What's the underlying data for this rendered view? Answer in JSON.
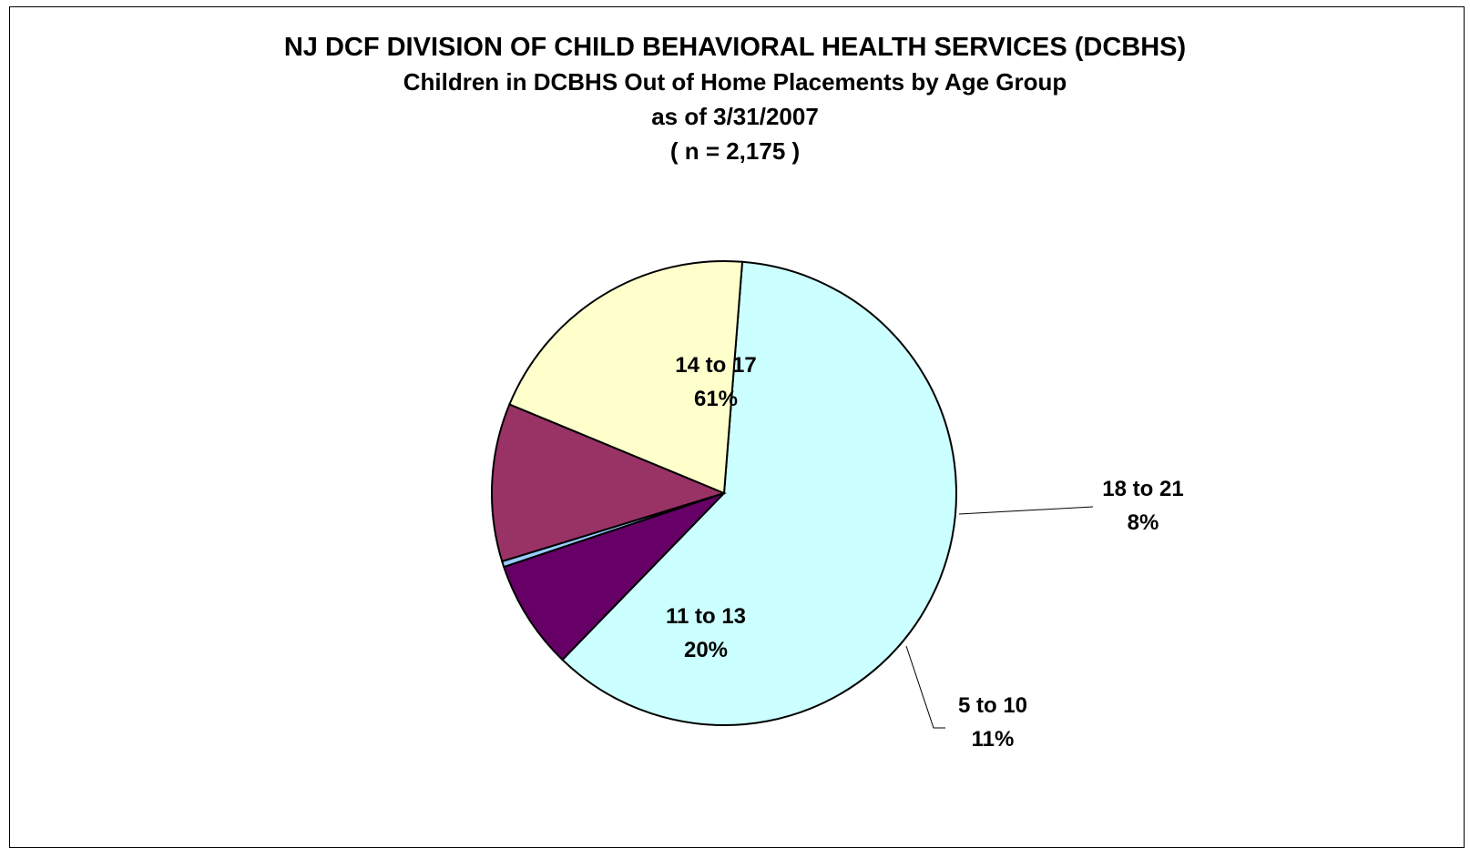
{
  "chart_data": {
    "type": "pie",
    "title": "NJ DCF DIVISION OF CHILD BEHAVIORAL HEALTH SERVICES (DCBHS)",
    "subtitle_lines": [
      "Children in DCBHS Out of Home Placements by Age Group",
      "as of 3/31/2007",
      "( n = 2,175 )"
    ],
    "slices": [
      {
        "label": "14 to 17",
        "percent_label": "61%",
        "value": 61.0,
        "color": "#ccffff"
      },
      {
        "label": "18 to 21",
        "percent_label": "8%",
        "value": 7.6,
        "color": "#660066"
      },
      {
        "label": "",
        "percent_label": "",
        "value": 0.4,
        "color": "#99ccff"
      },
      {
        "label": "5 to 10",
        "percent_label": "11%",
        "value": 11.0,
        "color": "#993366"
      },
      {
        "label": "11 to 13",
        "percent_label": "20%",
        "value": 20.0,
        "color": "#ffffcc"
      }
    ],
    "start_angle_deg": 85.5,
    "direction": "clockwise",
    "legend": "none"
  }
}
